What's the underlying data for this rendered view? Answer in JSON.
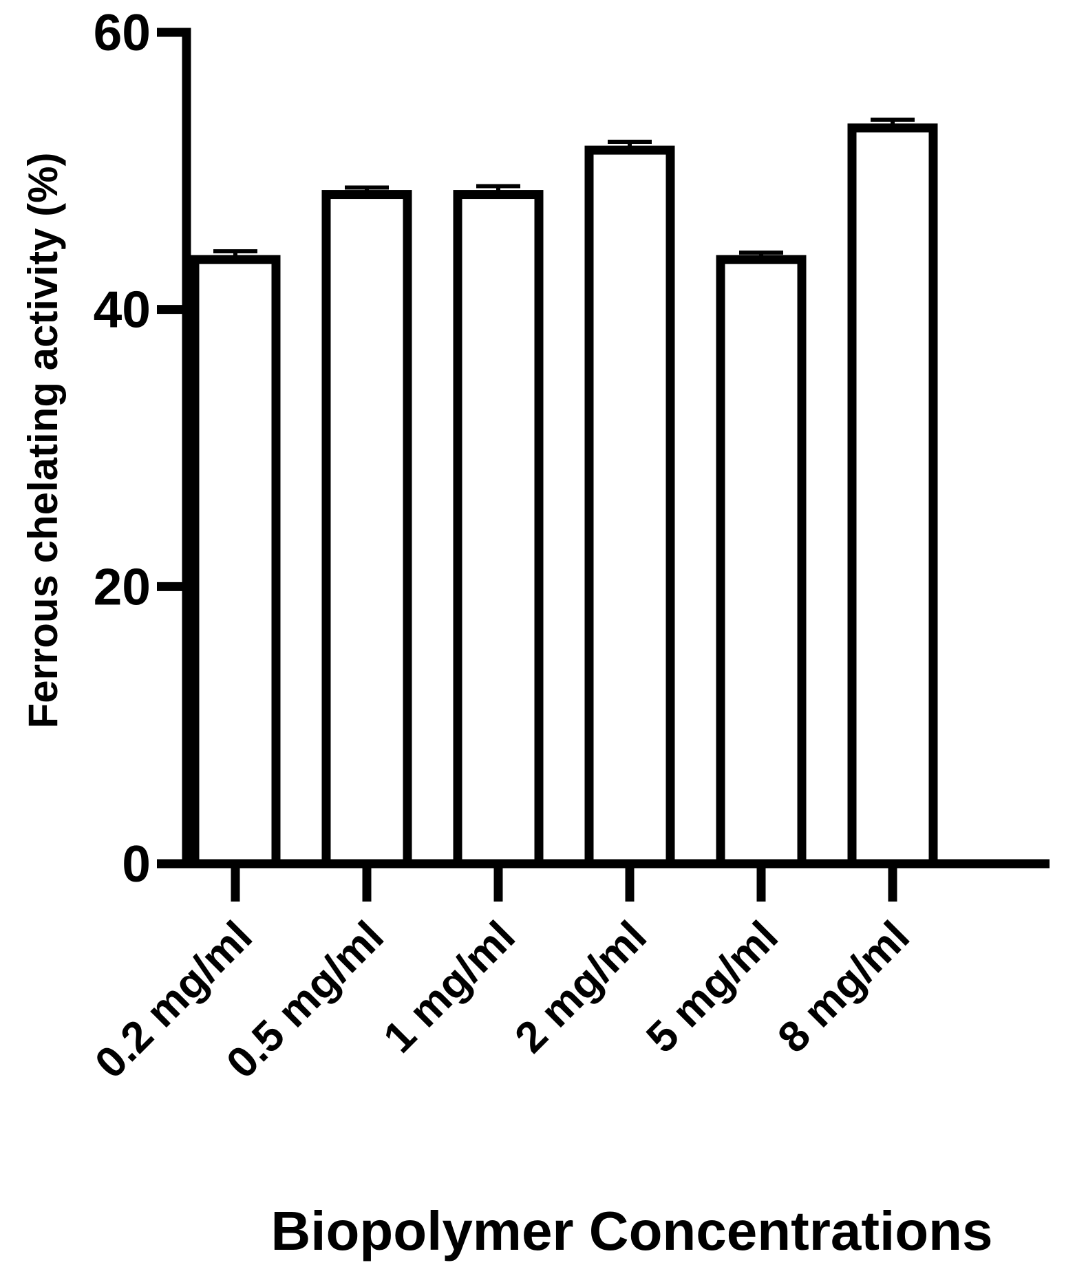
{
  "chart_data": {
    "type": "bar",
    "title": "",
    "xlabel": "Biopolymer Concentrations",
    "ylabel": "Ferrous chelating activity (%)",
    "categories": [
      "0.2 mg/ml",
      "0.5 mg/ml",
      "1 mg/ml",
      "2 mg/ml",
      "5 mg/ml",
      "8 mg/ml"
    ],
    "values": [
      43.6,
      48.3,
      48.3,
      51.5,
      43.6,
      53.1
    ],
    "errors": [
      0.6,
      0.5,
      0.6,
      0.6,
      0.5,
      0.6
    ],
    "ylim": [
      0,
      60
    ],
    "yticks": [
      0,
      20,
      40,
      60
    ],
    "grid": false,
    "legend": "none",
    "colors": {
      "bar_fill": "#ffffff",
      "bar_stroke": "#000000",
      "axis": "#000000"
    }
  }
}
